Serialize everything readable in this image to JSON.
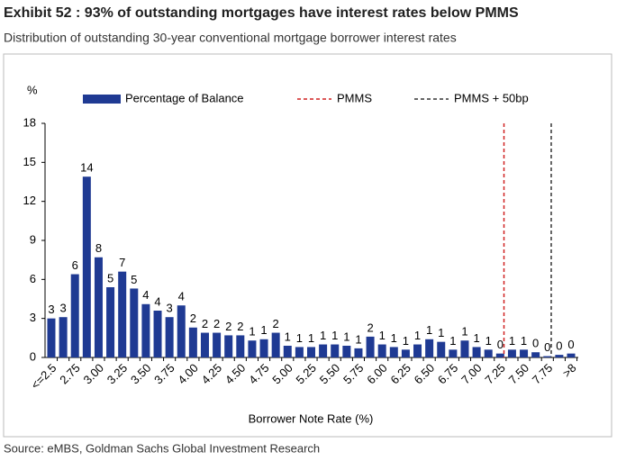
{
  "chart_data": {
    "type": "bar",
    "title": "Exhibit 52 : 93% of outstanding mortgages have interest rates below PMMS",
    "subtitle": "Distribution of outstanding 30-year conventional mortgage borrower interest rates",
    "y_label": "%",
    "x_label": "Borrower Note Rate (%)",
    "source": "Source: eMBS, Goldman Sachs Global Investment Research",
    "categories": [
      "<=2.5",
      null,
      "2.75",
      null,
      "3.00",
      null,
      "3.25",
      null,
      "3.50",
      null,
      "3.75",
      null,
      "4.00",
      null,
      "4.25",
      null,
      "4.50",
      null,
      "4.75",
      null,
      "5.00",
      null,
      "5.25",
      null,
      "5.50",
      null,
      "5.75",
      null,
      "6.00",
      null,
      "6.25",
      null,
      "6.50",
      null,
      "6.75",
      null,
      "7.00",
      null,
      "7.25",
      null,
      "7.50",
      null,
      "7.75",
      null,
      ">8"
    ],
    "series": [
      {
        "name": "Percentage of Balance",
        "color": "#1f3a93",
        "values": [
          3.0,
          3.1,
          6.4,
          13.9,
          7.7,
          5.4,
          6.6,
          5.3,
          4.1,
          3.6,
          3.1,
          4.0,
          2.3,
          1.9,
          1.9,
          1.7,
          1.7,
          1.3,
          1.4,
          1.9,
          0.9,
          0.8,
          0.8,
          1.0,
          1.0,
          0.9,
          0.7,
          1.6,
          1.0,
          0.8,
          0.6,
          1.0,
          1.4,
          1.2,
          0.6,
          1.3,
          0.8,
          0.6,
          0.3,
          0.6,
          0.6,
          0.4,
          0.1,
          0.2,
          0.3
        ],
        "value_labels": [
          "3",
          "3",
          "6",
          "14",
          "8",
          "5",
          "7",
          "5",
          "4",
          "4",
          "3",
          "4",
          "2",
          "2",
          "2",
          "2",
          "2",
          "1",
          "1",
          "2",
          "1",
          "1",
          "1",
          "1",
          "1",
          "1",
          "1",
          "2",
          "1",
          "1",
          "1",
          "1",
          "1",
          "1",
          "1",
          "1",
          "1",
          "1",
          "0",
          "1",
          "1",
          "0",
          "0",
          "0",
          "0"
        ]
      }
    ],
    "reference_lines": [
      {
        "name": "PMMS",
        "color": "#d02020",
        "value": 7.29
      },
      {
        "name": "PMMS + 50bp",
        "color": "#333333",
        "value": 7.79
      }
    ],
    "ylim": [
      0,
      18
    ],
    "yticks": [
      0,
      3,
      6,
      9,
      12,
      15,
      18
    ]
  }
}
